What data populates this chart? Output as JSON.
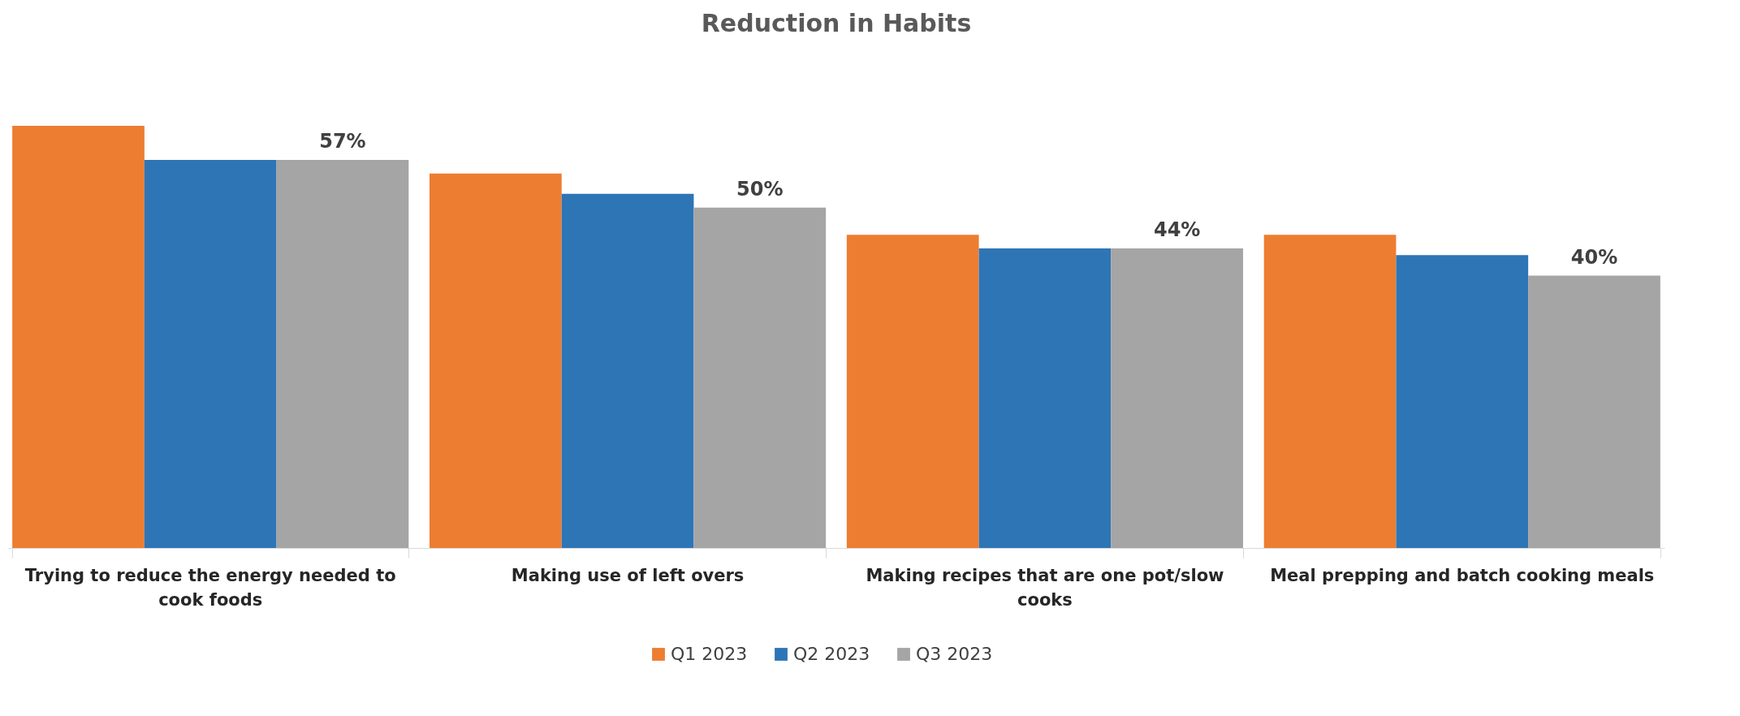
{
  "chart_data": {
    "type": "bar",
    "title": "Reduction in Habits",
    "categories": [
      "Trying to reduce the energy needed to cook foods",
      "Making use of left overs",
      "Making recipes that are one pot/slow cooks",
      "Meal prepping and batch cooking meals"
    ],
    "series": [
      {
        "name": "Q1 2023",
        "color": "#ed7d31",
        "values": [
          62,
          55,
          46,
          46
        ]
      },
      {
        "name": "Q2 2023",
        "color": "#2e75b6",
        "values": [
          57,
          52,
          44,
          43
        ]
      },
      {
        "name": "Q3 2023",
        "color": "#a5a5a5",
        "values": [
          57,
          50,
          44,
          40
        ],
        "value_labels": [
          "57%",
          "50%",
          "44%",
          "40%"
        ]
      }
    ],
    "legend": "bottom",
    "grid": false
  }
}
